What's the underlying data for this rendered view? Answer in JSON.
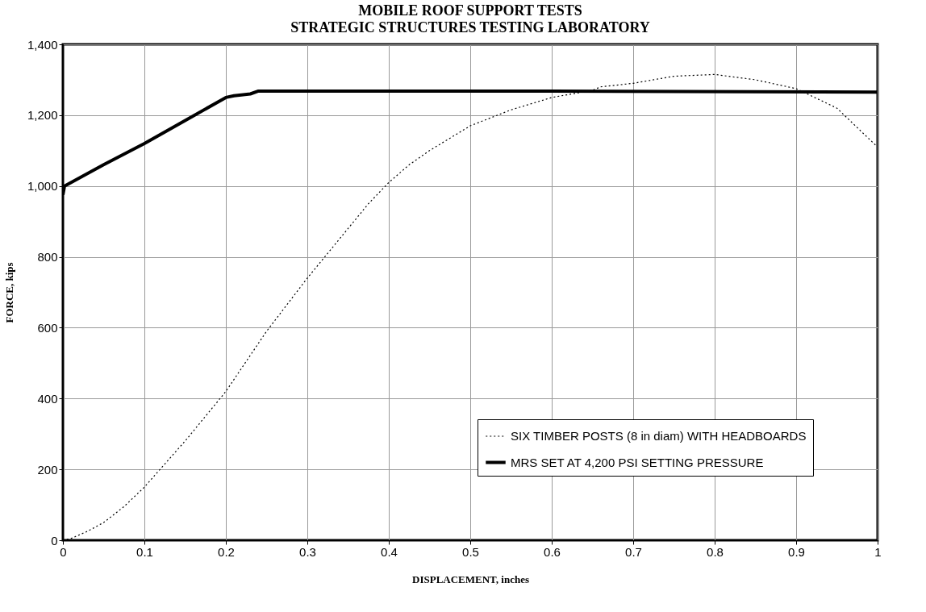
{
  "chart_data": {
    "type": "line",
    "title": "MOBILE ROOF SUPPORT TESTS",
    "subtitle": "STRATEGIC STRUCTURES TESTING LABORATORY",
    "xlabel": "DISPLACEMENT, inches",
    "ylabel": "FORCE, kips",
    "xlim": [
      0,
      1
    ],
    "xticks": [
      0,
      0.1,
      0.2,
      0.3,
      0.4,
      0.5,
      0.6,
      0.7,
      0.8,
      0.9,
      1
    ],
    "ylim": [
      0,
      1400
    ],
    "yticks": [
      0,
      200,
      400,
      600,
      800,
      {
        "value": 1000,
        "label": "1,000"
      },
      {
        "value": 1200,
        "label": "1,200"
      },
      {
        "value": 1400,
        "label": "1,400"
      }
    ],
    "grid": true,
    "legend": "bottom right",
    "series": [
      {
        "name": "SIX TIMBER POSTS (8 in diam) WITH HEADBOARDS",
        "color": "#000000",
        "line_style": "dotted",
        "x": [
          0,
          0.01,
          0.03,
          0.05,
          0.075,
          0.1,
          0.125,
          0.15,
          0.175,
          0.2,
          0.225,
          0.25,
          0.275,
          0.3,
          0.325,
          0.35,
          0.375,
          0.4,
          0.425,
          0.45,
          0.5,
          0.55,
          0.6,
          0.65,
          0.66,
          0.7,
          0.75,
          0.8,
          0.85,
          0.9,
          0.95,
          1.0
        ],
        "values": [
          0,
          5,
          25,
          50,
          95,
          150,
          215,
          280,
          350,
          420,
          505,
          590,
          665,
          740,
          810,
          880,
          950,
          1010,
          1060,
          1100,
          1170,
          1215,
          1250,
          1270,
          1280,
          1290,
          1310,
          1315,
          1300,
          1275,
          1220,
          1110
        ]
      },
      {
        "name": "MRS SET AT 4,200 PSI SETTING PRESSURE",
        "color": "#000000",
        "line_style": "solid",
        "x": [
          0,
          0.002,
          0.05,
          0.1,
          0.15,
          0.2,
          0.21,
          0.23,
          0.24,
          0.3,
          0.6,
          1.0
        ],
        "values": [
          975,
          1000,
          1060,
          1120,
          1185,
          1250,
          1255,
          1260,
          1268,
          1268,
          1268,
          1265
        ]
      }
    ]
  }
}
